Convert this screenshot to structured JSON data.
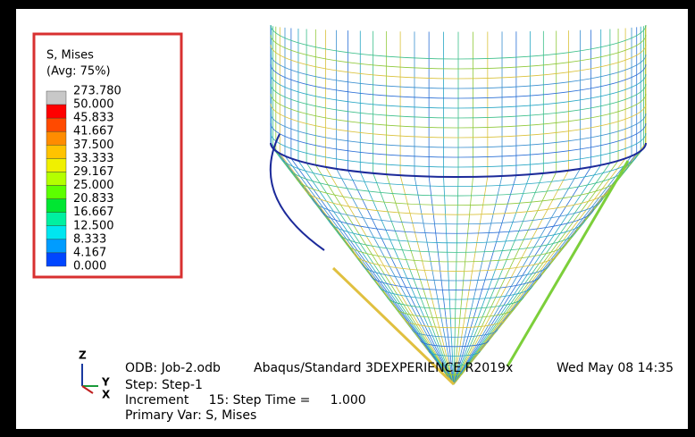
{
  "legend": {
    "title": "S, Mises",
    "subtitle": "(Avg: 75%)",
    "levels": [
      "273.780",
      "50.000",
      "45.833",
      "41.667",
      "37.500",
      "33.333",
      "29.167",
      "25.000",
      "20.833",
      "16.667",
      "12.500",
      "8.333",
      "4.167",
      "0.000"
    ],
    "colors": [
      "#c8c8c8",
      "#ff0000",
      "#ff4a00",
      "#ff8c00",
      "#ffc300",
      "#f0f000",
      "#b4ff00",
      "#5cff00",
      "#00e632",
      "#00f0a0",
      "#00e6f0",
      "#009cff",
      "#0046ff"
    ]
  },
  "triad": {
    "z": "Z",
    "y": "Y",
    "x": "X"
  },
  "info": {
    "odb": "ODB: Job-2.odb",
    "solver": "Abaqus/Standard 3DEXPERIENCE R2019x",
    "date": "Wed May 08 14:35",
    "step": "Step: Step-1",
    "increment": "Increment     15: Step Time =     1.000",
    "primary": "Primary Var: S, Mises"
  }
}
